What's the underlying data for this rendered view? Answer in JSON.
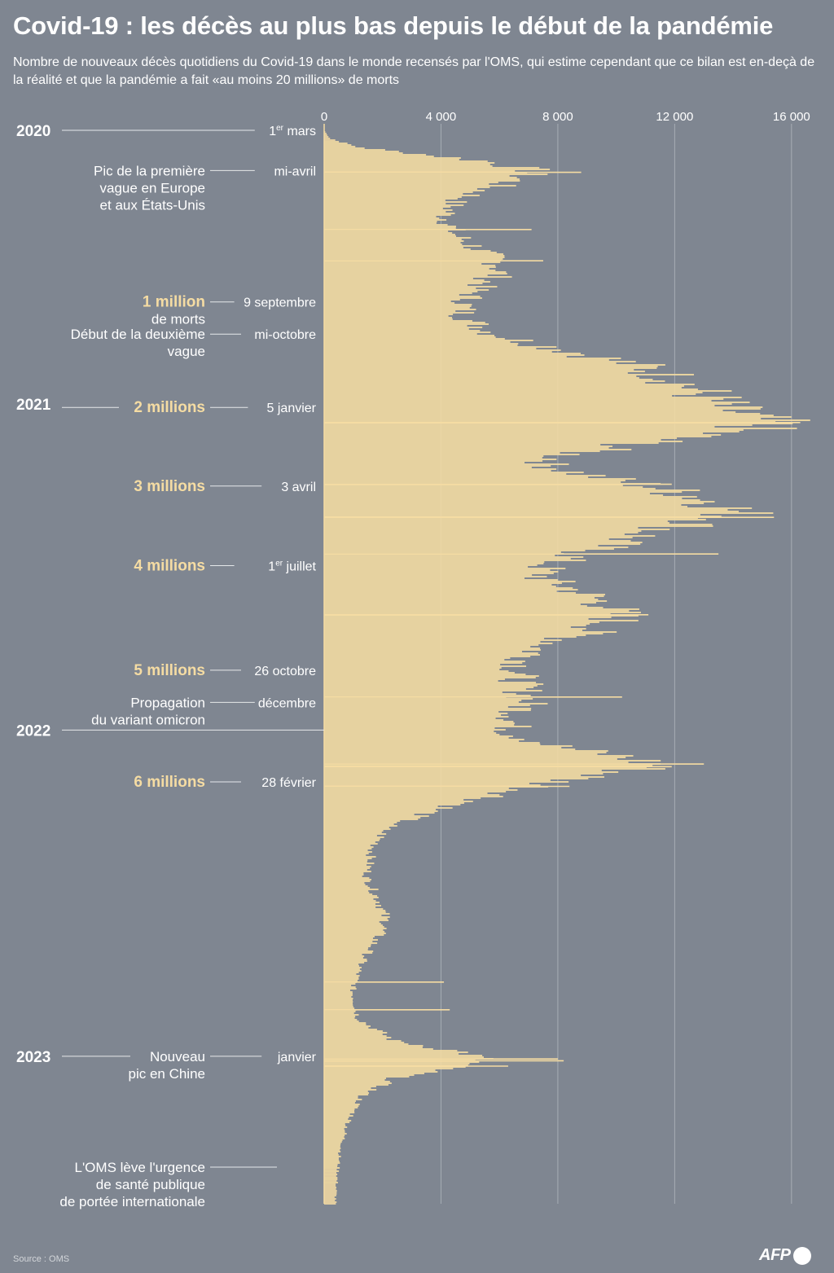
{
  "title": "Covid-19 : les décès au plus bas depuis le début de la pandémie",
  "subtitle": "Nombre de nouveaux décès quotidiens du Covid-19 dans le monde recensés par l'OMS, qui estime cependant que ce bilan est en-deçà de la réalité et que la pandémie a fait «au moins 20 millions» de morts",
  "source": "Source : OMS",
  "logo": "AFP",
  "colors": {
    "background": "#7f8691",
    "bars": "#f5dca3",
    "highlight": "#f5dca3",
    "text": "#ffffff",
    "gridline": "#a7adb5",
    "leader": "#e6e8ea"
  },
  "chart_data": {
    "type": "bar",
    "orientation": "horizontal",
    "x_axis": {
      "position": "top",
      "ticks": [
        0,
        4000,
        8000,
        12000,
        16000
      ],
      "tick_labels": [
        "0",
        "4 000",
        "8 000",
        "12 000",
        "16 000"
      ],
      "range": [
        0,
        16200
      ]
    },
    "y_axis": {
      "range": [
        "2020-03-01",
        "2023-06-15"
      ]
    },
    "series": [
      {
        "daily_deaths_envelope": [
          {
            "date": "2020-03-01",
            "value": 0
          },
          {
            "date": "2020-03-10",
            "value": 200
          },
          {
            "date": "2020-03-20",
            "value": 1200
          },
          {
            "date": "2020-03-28",
            "value": 3500
          },
          {
            "date": "2020-04-05",
            "value": 5800
          },
          {
            "date": "2020-04-15",
            "value": 7400
          },
          {
            "date": "2020-04-25",
            "value": 6800
          },
          {
            "date": "2020-05-05",
            "value": 5800
          },
          {
            "date": "2020-05-20",
            "value": 4600
          },
          {
            "date": "2020-06-05",
            "value": 4300
          },
          {
            "date": "2020-06-25",
            "value": 4600
          },
          {
            "date": "2020-07-15",
            "value": 5600
          },
          {
            "date": "2020-07-30",
            "value": 6300
          },
          {
            "date": "2020-08-10",
            "value": 6100
          },
          {
            "date": "2020-08-25",
            "value": 5400
          },
          {
            "date": "2020-09-09",
            "value": 5000
          },
          {
            "date": "2020-09-25",
            "value": 4900
          },
          {
            "date": "2020-10-15",
            "value": 6000
          },
          {
            "date": "2020-10-25",
            "value": 7300
          },
          {
            "date": "2020-11-05",
            "value": 9000
          },
          {
            "date": "2020-11-20",
            "value": 11200
          },
          {
            "date": "2020-12-05",
            "value": 12500
          },
          {
            "date": "2020-12-20",
            "value": 13300
          },
          {
            "date": "2021-01-05",
            "value": 14000
          },
          {
            "date": "2021-01-20",
            "value": 15500
          },
          {
            "date": "2021-01-28",
            "value": 15200
          },
          {
            "date": "2021-02-05",
            "value": 13200
          },
          {
            "date": "2021-02-15",
            "value": 11000
          },
          {
            "date": "2021-02-28",
            "value": 8400
          },
          {
            "date": "2021-03-10",
            "value": 7800
          },
          {
            "date": "2021-03-20",
            "value": 9000
          },
          {
            "date": "2021-04-03",
            "value": 11500
          },
          {
            "date": "2021-04-15",
            "value": 13200
          },
          {
            "date": "2021-04-25",
            "value": 14200
          },
          {
            "date": "2021-05-05",
            "value": 14600
          },
          {
            "date": "2021-05-15",
            "value": 13200
          },
          {
            "date": "2021-05-25",
            "value": 11500
          },
          {
            "date": "2021-06-10",
            "value": 9800
          },
          {
            "date": "2021-07-01",
            "value": 7800
          },
          {
            "date": "2021-07-15",
            "value": 7700
          },
          {
            "date": "2021-07-30",
            "value": 9000
          },
          {
            "date": "2021-08-15",
            "value": 10100
          },
          {
            "date": "2021-08-30",
            "value": 10300
          },
          {
            "date": "2021-09-15",
            "value": 9200
          },
          {
            "date": "2021-10-01",
            "value": 7600
          },
          {
            "date": "2021-10-26",
            "value": 6800
          },
          {
            "date": "2021-11-15",
            "value": 7000
          },
          {
            "date": "2021-12-01",
            "value": 7200
          },
          {
            "date": "2021-12-20",
            "value": 6700
          },
          {
            "date": "2022-01-05",
            "value": 6600
          },
          {
            "date": "2022-01-20",
            "value": 8300
          },
          {
            "date": "2022-02-01",
            "value": 10800
          },
          {
            "date": "2022-02-10",
            "value": 11800
          },
          {
            "date": "2022-02-28",
            "value": 8200
          },
          {
            "date": "2022-03-15",
            "value": 6200
          },
          {
            "date": "2022-03-31",
            "value": 4000
          },
          {
            "date": "2022-04-20",
            "value": 2200
          },
          {
            "date": "2022-05-15",
            "value": 1700
          },
          {
            "date": "2022-06-15",
            "value": 1500
          },
          {
            "date": "2022-07-15",
            "value": 2000
          },
          {
            "date": "2022-08-05",
            "value": 2200
          },
          {
            "date": "2022-08-25",
            "value": 1800
          },
          {
            "date": "2022-09-20",
            "value": 1300
          },
          {
            "date": "2022-10-20",
            "value": 1000
          },
          {
            "date": "2022-11-20",
            "value": 1200
          },
          {
            "date": "2022-12-15",
            "value": 2500
          },
          {
            "date": "2022-12-28",
            "value": 5000
          },
          {
            "date": "2023-01-05",
            "value": 5600
          },
          {
            "date": "2023-01-15",
            "value": 4300
          },
          {
            "date": "2023-01-25",
            "value": 2500
          },
          {
            "date": "2023-02-15",
            "value": 1300
          },
          {
            "date": "2023-03-20",
            "value": 800
          },
          {
            "date": "2023-04-20",
            "value": 550
          },
          {
            "date": "2023-05-20",
            "value": 450
          },
          {
            "date": "2023-06-10",
            "value": 400
          }
        ],
        "spikes": [
          {
            "date": "2020-04-17",
            "value": 8800
          },
          {
            "date": "2020-06-20",
            "value": 7100
          },
          {
            "date": "2020-07-25",
            "value": 7500
          },
          {
            "date": "2021-01-22",
            "value": 16300
          },
          {
            "date": "2021-04-01",
            "value": 11900
          },
          {
            "date": "2021-05-08",
            "value": 15400
          },
          {
            "date": "2021-06-18",
            "value": 13500
          },
          {
            "date": "2021-08-25",
            "value": 11100
          },
          {
            "date": "2021-11-25",
            "value": 10200
          },
          {
            "date": "2022-02-08",
            "value": 13000
          },
          {
            "date": "2022-02-11",
            "value": 11900
          },
          {
            "date": "2022-03-05",
            "value": 8400
          },
          {
            "date": "2022-10-10",
            "value": 4100
          },
          {
            "date": "2022-11-10",
            "value": 4300
          },
          {
            "date": "2023-01-04",
            "value": 8000
          },
          {
            "date": "2023-01-06",
            "value": 8200
          },
          {
            "date": "2023-01-12",
            "value": 6300
          }
        ]
      }
    ],
    "year_labels": [
      {
        "label": "2020",
        "date": "2020-03-01"
      },
      {
        "label": "2021",
        "date": "2021-01-01"
      },
      {
        "label": "2022",
        "date": "2022-01-01"
      },
      {
        "label": "2023",
        "date": "2023-01-01"
      }
    ],
    "annotations": [
      {
        "date": "2020-03-01",
        "date_label": "1er mars",
        "text": []
      },
      {
        "date": "2020-04-15",
        "date_label": "mi-avril",
        "text": [
          "Pic de la première",
          "vague en Europe",
          "et aux États-Unis"
        ]
      },
      {
        "date": "2020-09-09",
        "date_label": "9 septembre",
        "milestone": "1 million",
        "text": [
          "de morts"
        ]
      },
      {
        "date": "2020-10-15",
        "date_label": "mi-octobre",
        "text": [
          "Début de la deuxième",
          "vague"
        ]
      },
      {
        "date": "2021-01-05",
        "date_label": "5 janvier",
        "milestone": "2 millions",
        "text": []
      },
      {
        "date": "2021-04-03",
        "date_label": "3 avril",
        "milestone": "3 millions",
        "text": []
      },
      {
        "date": "2021-07-01",
        "date_label": "1er juillet",
        "milestone": "4 millions",
        "text": []
      },
      {
        "date": "2021-10-26",
        "date_label": "26 octobre",
        "milestone": "5 millions",
        "text": []
      },
      {
        "date": "2021-12-01",
        "date_label": "décembre",
        "text": [
          "Propagation",
          "du variant omicron"
        ]
      },
      {
        "date": "2022-02-28",
        "date_label": "28 février",
        "milestone": "6 millions",
        "text": []
      },
      {
        "date": "2023-01-01",
        "date_label": "janvier",
        "text": [
          "Nouveau",
          "pic en Chine"
        ]
      },
      {
        "date": "2023-05-05",
        "date_label": "",
        "text": [
          "L'OMS lève l'urgence",
          "de santé publique",
          "de portée internationale"
        ]
      }
    ]
  }
}
